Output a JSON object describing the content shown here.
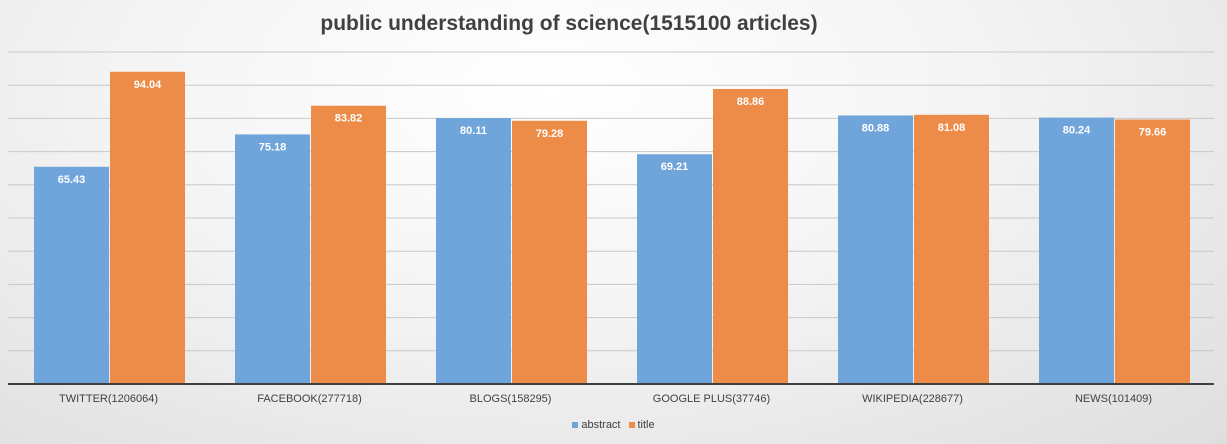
{
  "chart_data": {
    "type": "bar",
    "title": "public understanding of science(1515100 articles)",
    "categories": [
      "TWITTER(1206064)",
      "FACEBOOK(277718)",
      "BLOGS(158295)",
      "GOOGLE PLUS(37746)",
      "WIKIPEDIA(228677)",
      "NEWS(101409)"
    ],
    "series": [
      {
        "name": "abstract",
        "color": "#6fa5da",
        "values": [
          65.43,
          75.18,
          80.11,
          69.21,
          80.88,
          80.24
        ]
      },
      {
        "name": "title",
        "color": "#ed8b49",
        "values": [
          94.04,
          83.82,
          79.28,
          88.86,
          81.08,
          79.66
        ]
      }
    ],
    "ylim": [
      0,
      100
    ],
    "grid": true,
    "legend": "bottom",
    "xlabel": "",
    "ylabel": ""
  }
}
